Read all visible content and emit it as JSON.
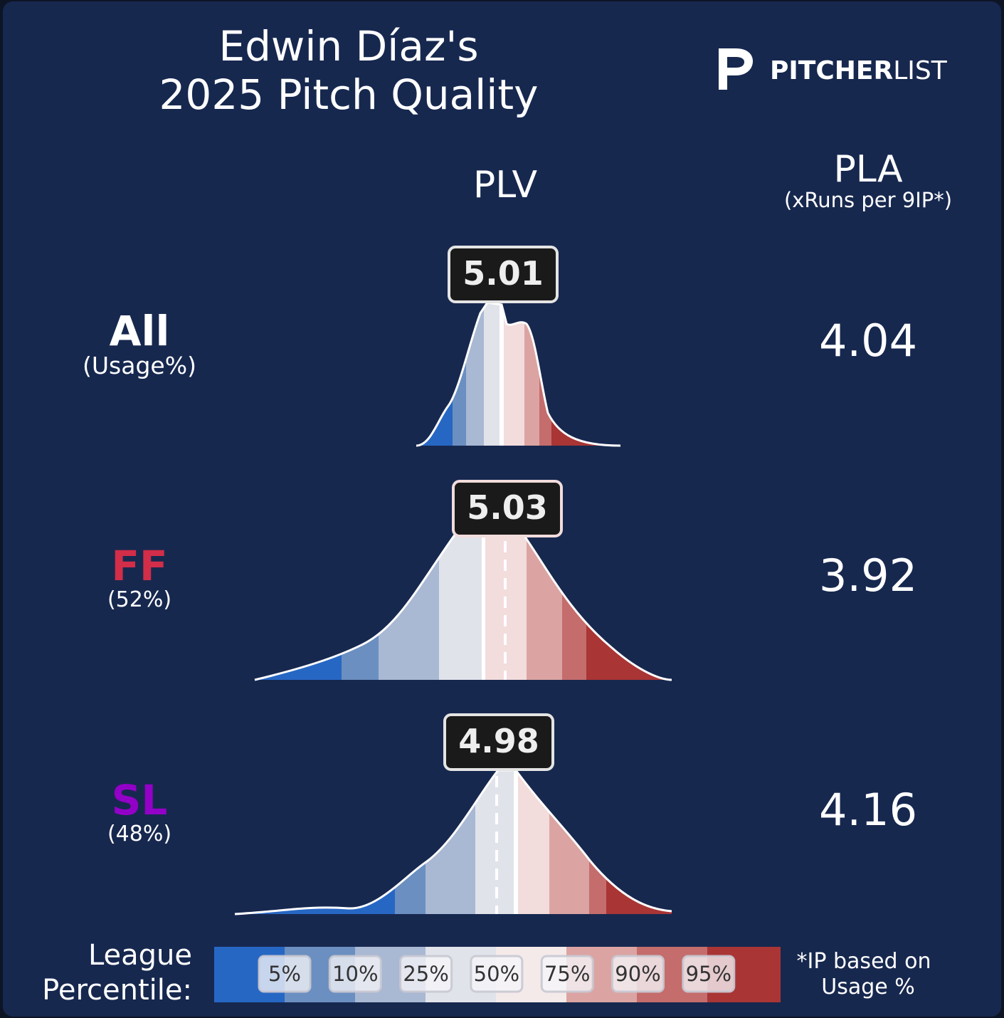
{
  "header": {
    "title_line1": "Edwin Díaz's",
    "title_line2": "2025 Pitch Quality",
    "logo_bold": "PITCHER",
    "logo_light": "LIST"
  },
  "columns": {
    "plv": "PLV",
    "pla": "PLA",
    "pla_note": "(xRuns per 9IP*)"
  },
  "rows": [
    {
      "pitch": "All",
      "usage": "(Usage%)",
      "plv": 5.01,
      "pla": 4.04,
      "color": "#ffffff"
    },
    {
      "pitch": "FF",
      "usage": "(52%)",
      "plv": 5.03,
      "pla": 3.92,
      "color": "#d22d49"
    },
    {
      "pitch": "SL",
      "usage": "(48%)",
      "plv": 4.98,
      "pla": 4.16,
      "color": "#9300c7"
    }
  ],
  "legend": {
    "label_line1": "League",
    "label_line2": "Percentile:",
    "percentiles": [
      "5%",
      "10%",
      "25%",
      "50%",
      "75%",
      "90%",
      "95%"
    ],
    "note_line1": "*IP based on",
    "note_line2": "Usage %"
  }
}
